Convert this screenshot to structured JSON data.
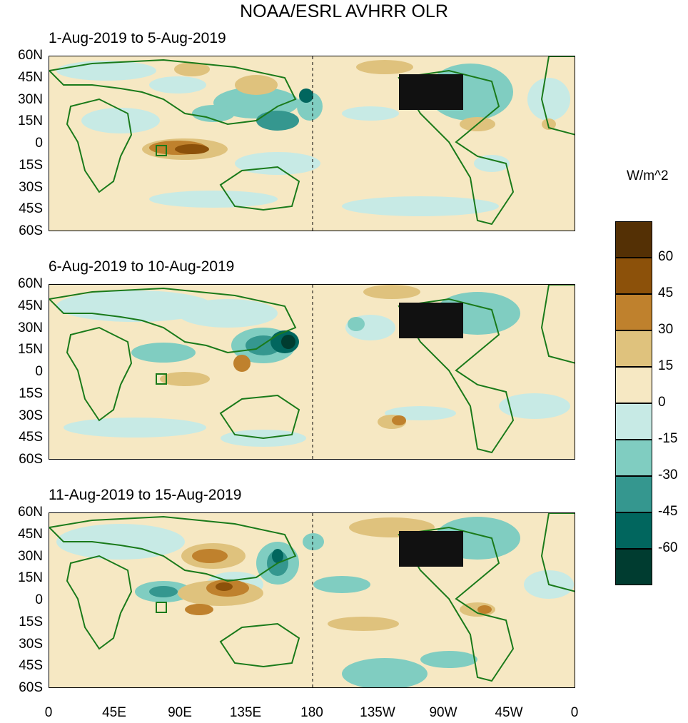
{
  "title": "NOAA/ESRL AVHRR OLR",
  "panels": [
    {
      "period": "1-Aug-2019 to 5-Aug-2019"
    },
    {
      "period": "6-Aug-2019 to 10-Aug-2019"
    },
    {
      "period": "11-Aug-2019 to 15-Aug-2019"
    }
  ],
  "lat_labels": [
    "60N",
    "45N",
    "30N",
    "15N",
    "0",
    "15S",
    "30S",
    "45S",
    "60S"
  ],
  "lon_labels": [
    "0",
    "45E",
    "90E",
    "135E",
    "180",
    "135W",
    "90W",
    "45W",
    "0"
  ],
  "colorbar": {
    "units": "W/m^2",
    "labels": [
      "60",
      "45",
      "30",
      "15",
      "0",
      "-15",
      "-30",
      "-45",
      "-60"
    ],
    "colors": [
      "#543005",
      "#8c510a",
      "#bf812d",
      "#dfc27d",
      "#f6e8c3",
      "#c7eae5",
      "#80cdc1",
      "#35978f",
      "#01665e",
      "#003c30"
    ]
  },
  "colors": {
    "coastline": "#1a7a1a",
    "dateline": "#000000"
  }
}
